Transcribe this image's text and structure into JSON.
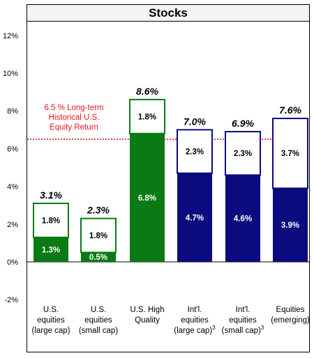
{
  "chart_data": {
    "type": "bar",
    "stacked": true,
    "title": "Stocks",
    "ylim": [
      -2,
      12
    ],
    "yticks": [
      "12%",
      "10%",
      "8%",
      "6%",
      "4%",
      "2%",
      "0%",
      "-2%"
    ],
    "ytick_values": [
      12,
      10,
      8,
      6,
      4,
      2,
      0,
      -2
    ],
    "categories": [
      [
        "U.S.",
        "equities",
        "(large cap)"
      ],
      [
        "U.S.",
        "equities",
        "(small cap)"
      ],
      [
        "U.S. High",
        "Quality"
      ],
      [
        "Int'l.",
        "equities",
        "(large cap)"
      ],
      [
        "Int'l.",
        "equities",
        "(small cap)"
      ],
      [
        "Equities",
        "(emerging)"
      ]
    ],
    "footnotes": [
      "",
      "",
      "",
      "3",
      "3",
      ""
    ],
    "bottom_values": [
      1.3,
      0.5,
      6.8,
      4.7,
      4.6,
      3.9
    ],
    "bottom_labels": [
      "1.3%",
      "0.5%",
      "6.8%",
      "4.7%",
      "4.6%",
      "3.9%"
    ],
    "top_values": [
      1.8,
      1.8,
      1.8,
      2.3,
      2.3,
      3.7
    ],
    "top_labels": [
      "1.8%",
      "1.8%",
      "1.8%",
      "2.3%",
      "2.3%",
      "3.7%"
    ],
    "total_labels": [
      "3.1%",
      "2.3%",
      "8.6%",
      "7.0%",
      "6.9%",
      "7.6%"
    ],
    "bar_colors": [
      "#0a7a14",
      "#0a7a14",
      "#0a7a14",
      "#0b0b80",
      "#0b0b80",
      "#0b0b80"
    ],
    "reference_line": {
      "value": 6.5,
      "color": "#e0191b",
      "label": [
        "6.5 % Long-term",
        "Historical U.S.",
        "Equity Return"
      ]
    },
    "grid": false
  }
}
